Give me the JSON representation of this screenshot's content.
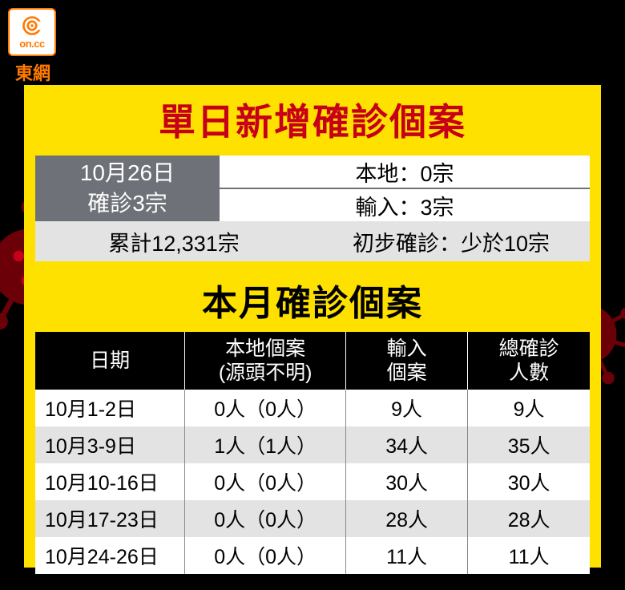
{
  "logo": {
    "brandText": "東網",
    "onText": "on.cc"
  },
  "colors": {
    "brandOrange": "#ff7a00",
    "red": "#c70019",
    "yellow": "#ffe100",
    "grayDark": "#6e7278",
    "grayLight": "#e3e3e4"
  },
  "section1": {
    "title": "單日新增確診個案",
    "dateLine1": "10月26日",
    "dateLine2": "確診3宗",
    "localLine": "本地：0宗",
    "importLine": "輸入：3宗",
    "cumulative": "累計12,331宗",
    "preliminary": "初步確診：少於10宗"
  },
  "section2": {
    "title": "本月確診個案",
    "columns": [
      "日期",
      "本地個案\n(源頭不明)",
      "輸入\n個案",
      "總確診\n人數"
    ],
    "rows": [
      [
        "10月1-2日",
        "0人（0人）",
        "9人",
        "9人"
      ],
      [
        "10月3-9日",
        "1人（1人）",
        "34人",
        "35人"
      ],
      [
        "10月10-16日",
        "0人（0人）",
        "30人",
        "30人"
      ],
      [
        "10月17-23日",
        "0人（0人）",
        "28人",
        "28人"
      ],
      [
        "10月24-26日",
        "0人（0人）",
        "11人",
        "11人"
      ]
    ]
  }
}
